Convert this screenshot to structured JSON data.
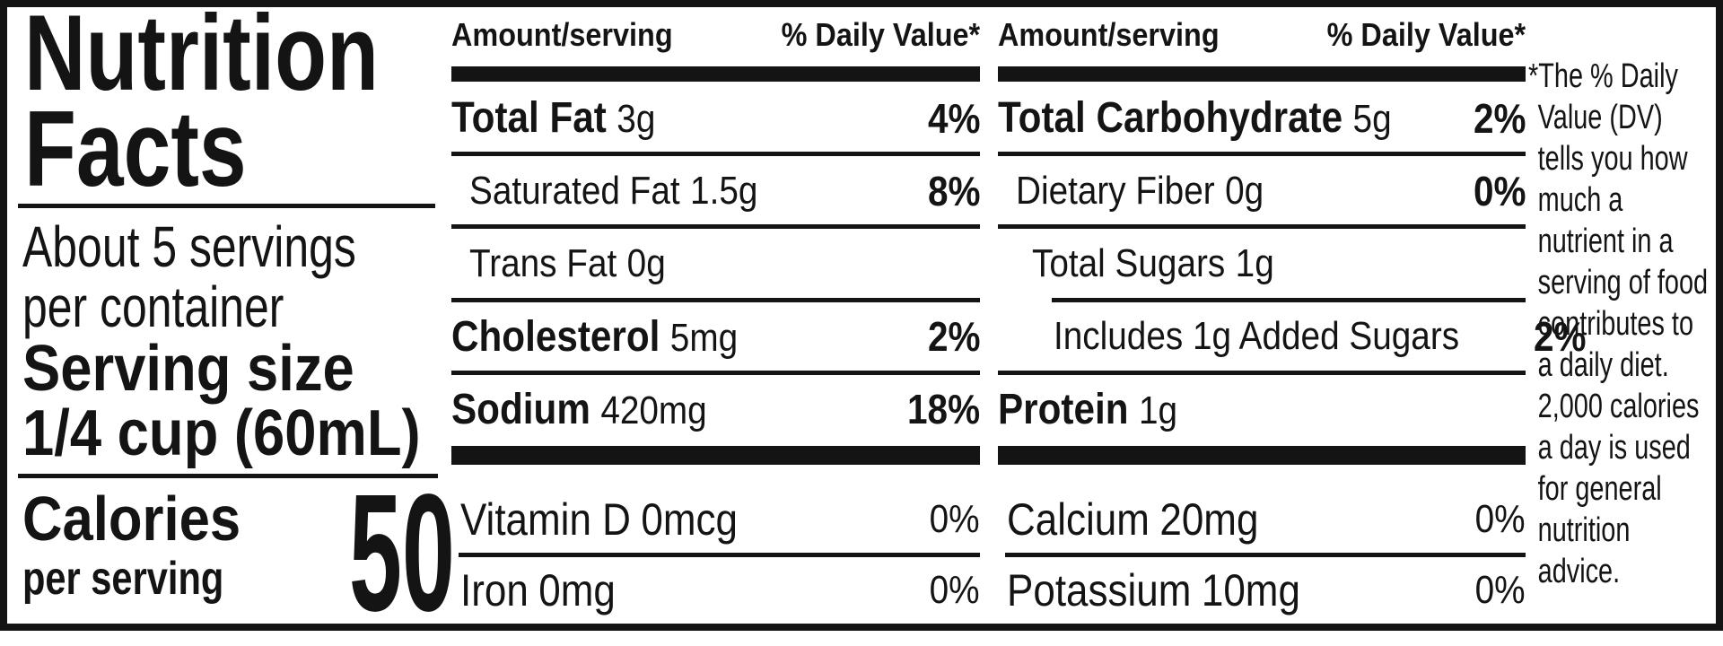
{
  "nutrition_label": {
    "title": {
      "line1": "Nutrition",
      "line2": "Facts"
    },
    "servings": {
      "line1": "About 5 servings",
      "line2": "per container"
    },
    "serving_size": {
      "label": "Serving size",
      "value": "1/4 cup (60mL)"
    },
    "calories": {
      "label": "Calories",
      "sublabel": "per serving",
      "value": "50"
    },
    "columns": [
      {
        "header": {
          "amount": "Amount/serving",
          "dv": "% Daily Value*"
        },
        "rows": [
          {
            "name": "Total Fat",
            "amount": "3g",
            "dv": "4%"
          },
          {
            "name": "Saturated Fat",
            "amount": "1.5g",
            "dv": "8%"
          },
          {
            "name": "Trans Fat",
            "amount": "0g",
            "dv": ""
          },
          {
            "name": "Cholesterol",
            "amount": "5mg",
            "dv": "2%"
          },
          {
            "name": "Sodium",
            "amount": "420mg",
            "dv": "18%"
          }
        ],
        "micros": [
          {
            "name": "Vitamin D",
            "amount": "0mcg",
            "dv": "0%"
          },
          {
            "name": "Iron",
            "amount": "0mg",
            "dv": "0%"
          }
        ]
      },
      {
        "header": {
          "amount": "Amount/serving",
          "dv": "% Daily Value*"
        },
        "rows": [
          {
            "name": "Total Carbohydrate",
            "amount": "5g",
            "dv": "2%"
          },
          {
            "name": "Dietary Fiber",
            "amount": "0g",
            "dv": "0%"
          },
          {
            "name": "Total Sugars",
            "amount": "1g",
            "dv": ""
          },
          {
            "name": "Includes 1g Added Sugars",
            "amount": "",
            "dv": "2%"
          },
          {
            "name": "Protein",
            "amount": "1g",
            "dv": ""
          }
        ],
        "micros": [
          {
            "name": "Calcium",
            "amount": "20mg",
            "dv": "0%"
          },
          {
            "name": "Potassium",
            "amount": "10mg",
            "dv": "0%"
          }
        ]
      }
    ],
    "footnote": "*The % Daily\nValue (DV)\ntells you how\nmuch a\nnutrient in a\nserving of food\ncontributes to\na daily diet.\n2,000 calories\na day is used\nfor general\nnutrition\nadvice."
  }
}
